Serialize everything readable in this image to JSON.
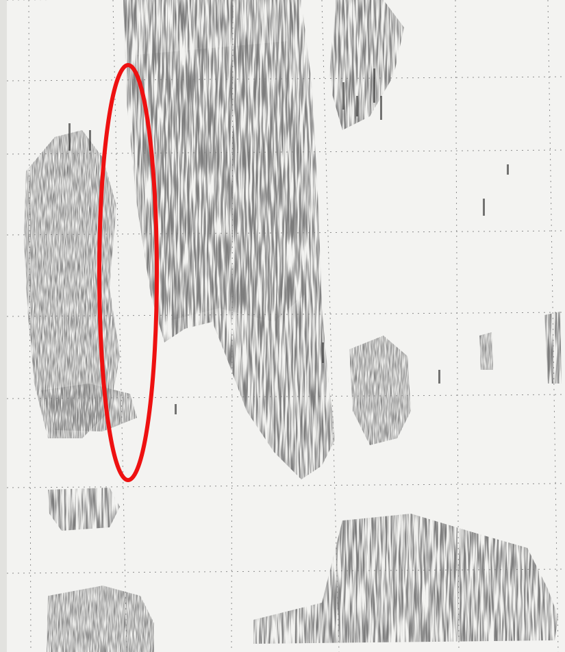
{
  "image": {
    "kind": "printed spectrogram scan",
    "paper_color": "#f3f3f1",
    "ink_color": "#3a3a3a",
    "grid_color": "#8c8c8c",
    "highlight": {
      "shape": "ellipse",
      "color": "#ee1111"
    }
  }
}
